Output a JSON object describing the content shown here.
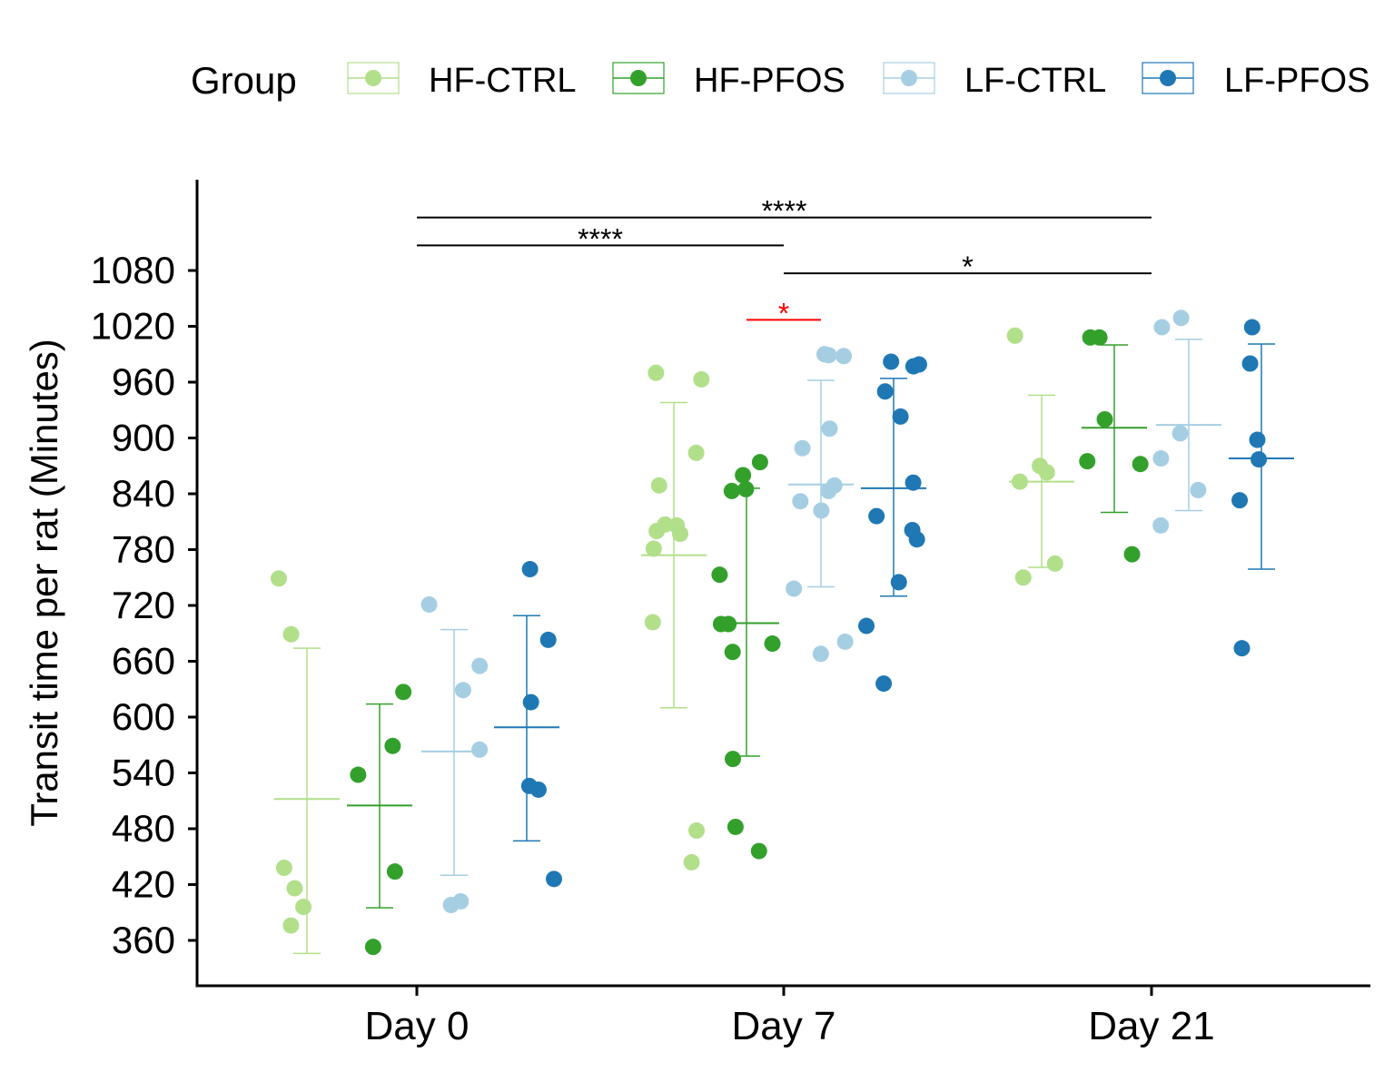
{
  "chart_data": {
    "type": "scatter",
    "title": "",
    "xlabel": "",
    "ylabel": "Transit time per rat (Minutes)",
    "categories": [
      "Day 0",
      "Day 7",
      "Day 21"
    ],
    "ylim": [
      310,
      1150
    ],
    "yticks": [
      360,
      420,
      480,
      540,
      600,
      660,
      720,
      780,
      840,
      900,
      960,
      1020,
      1080
    ],
    "grid": false,
    "legend": {
      "title": "Group",
      "position": "top",
      "entries": [
        "HF-CTRL",
        "HF-PFOS",
        "LF-CTRL",
        "LF-PFOS"
      ]
    },
    "series": [
      {
        "name": "HF-CTRL",
        "color": "#b2df8a",
        "points": {
          "Day 0": [
            749,
            689,
            438,
            416,
            396,
            376
          ],
          "Day 7": [
            970,
            963,
            884,
            849,
            807,
            806,
            800,
            797,
            781,
            702,
            478,
            444
          ],
          "Day 21": [
            1010,
            870,
            863,
            853,
            765,
            750
          ]
        },
        "mean": {
          "Day 0": 512,
          "Day 7": 774,
          "Day 21": 853
        },
        "error": {
          "Day 0": [
            346,
            674
          ],
          "Day 7": [
            610,
            938
          ],
          "Day 21": [
            761,
            946
          ]
        }
      },
      {
        "name": "HF-PFOS",
        "color": "#33a02c",
        "points": {
          "Day 0": [
            627,
            569,
            538,
            434,
            353
          ],
          "Day 7": [
            874,
            860,
            845,
            843,
            753,
            700,
            700,
            679,
            670,
            555,
            482,
            456
          ],
          "Day 21": [
            1008,
            1008,
            920,
            875,
            872,
            775
          ]
        },
        "mean": {
          "Day 0": 505,
          "Day 7": 701,
          "Day 21": 911
        },
        "error": {
          "Day 0": [
            395,
            614
          ],
          "Day 7": [
            558,
            846
          ],
          "Day 21": [
            820,
            1000
          ]
        }
      },
      {
        "name": "LF-CTRL",
        "color": "#a6cee3",
        "points": {
          "Day 0": [
            721,
            655,
            629,
            565,
            402,
            398
          ],
          "Day 7": [
            990,
            989,
            988,
            910,
            889,
            849,
            843,
            832,
            822,
            738,
            681,
            668
          ],
          "Day 21": [
            1029,
            1019,
            905,
            878,
            844,
            806
          ]
        },
        "mean": {
          "Day 0": 563,
          "Day 7": 850,
          "Day 21": 914
        },
        "error": {
          "Day 0": [
            430,
            694
          ],
          "Day 7": [
            740,
            962
          ],
          "Day 21": [
            822,
            1006
          ]
        }
      },
      {
        "name": "LF-PFOS",
        "color": "#1f78b4",
        "points": {
          "Day 0": [
            759,
            683,
            616,
            526,
            522,
            426
          ],
          "Day 7": [
            982,
            979,
            977,
            950,
            923,
            852,
            816,
            801,
            791,
            745,
            698,
            636
          ],
          "Day 21": [
            1019,
            980,
            898,
            877,
            833,
            674
          ]
        },
        "mean": {
          "Day 0": 589,
          "Day 7": 846,
          "Day 21": 878
        },
        "error": {
          "Day 0": [
            467,
            709
          ],
          "Day 7": [
            730,
            964
          ],
          "Day 21": [
            759,
            1001
          ]
        }
      }
    ],
    "annotations": [
      {
        "label": "****",
        "from": "Day 0",
        "to": "Day 21",
        "y": 1137,
        "color": "#000000"
      },
      {
        "label": "****",
        "from": "Day 0",
        "to": "Day 7",
        "y": 1107,
        "color": "#000000"
      },
      {
        "label": "*",
        "from": "Day 7",
        "to": "Day 21",
        "y": 1077,
        "color": "#000000"
      },
      {
        "label": "*",
        "from": "Day 7 HF-PFOS",
        "to": "Day 7 LF-CTRL",
        "y": 1027,
        "color": "#ff0000"
      }
    ]
  }
}
